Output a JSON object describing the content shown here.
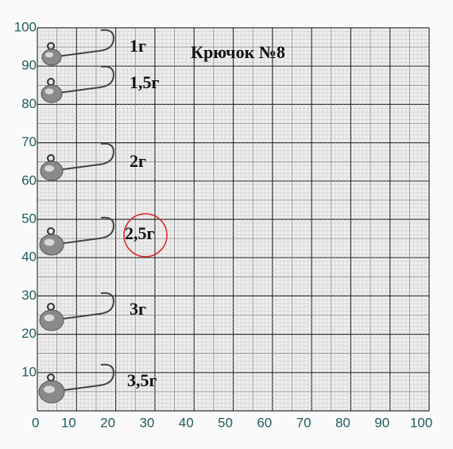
{
  "title": "Крючок №8",
  "weights": [
    "1г",
    "1,5г",
    "2г",
    "2,5г",
    "3г",
    "3,5г"
  ],
  "highlighted": 3,
  "x_axis": {
    "ticks": [
      0,
      10,
      20,
      30,
      40,
      50,
      60,
      70,
      80,
      90,
      100
    ]
  },
  "y_axis": {
    "ticks": [
      100,
      90,
      80,
      70,
      60,
      50,
      40,
      30,
      20,
      10
    ]
  }
}
